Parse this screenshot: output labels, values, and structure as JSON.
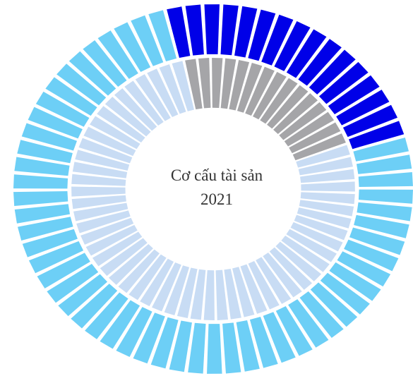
{
  "chart_data": {
    "type": "donut",
    "title": "Cơ cấu tài sản 2021",
    "series": [
      {
        "values": [
          24,
          76
        ],
        "colors": [
          "#0000e8",
          "#6dcff6"
        ],
        "start_angle": -14
      },
      {
        "values": [
          23,
          77
        ],
        "colors": [
          "#a5a5a8",
          "#c8dcf4"
        ],
        "start_angle": -12
      }
    ]
  }
}
